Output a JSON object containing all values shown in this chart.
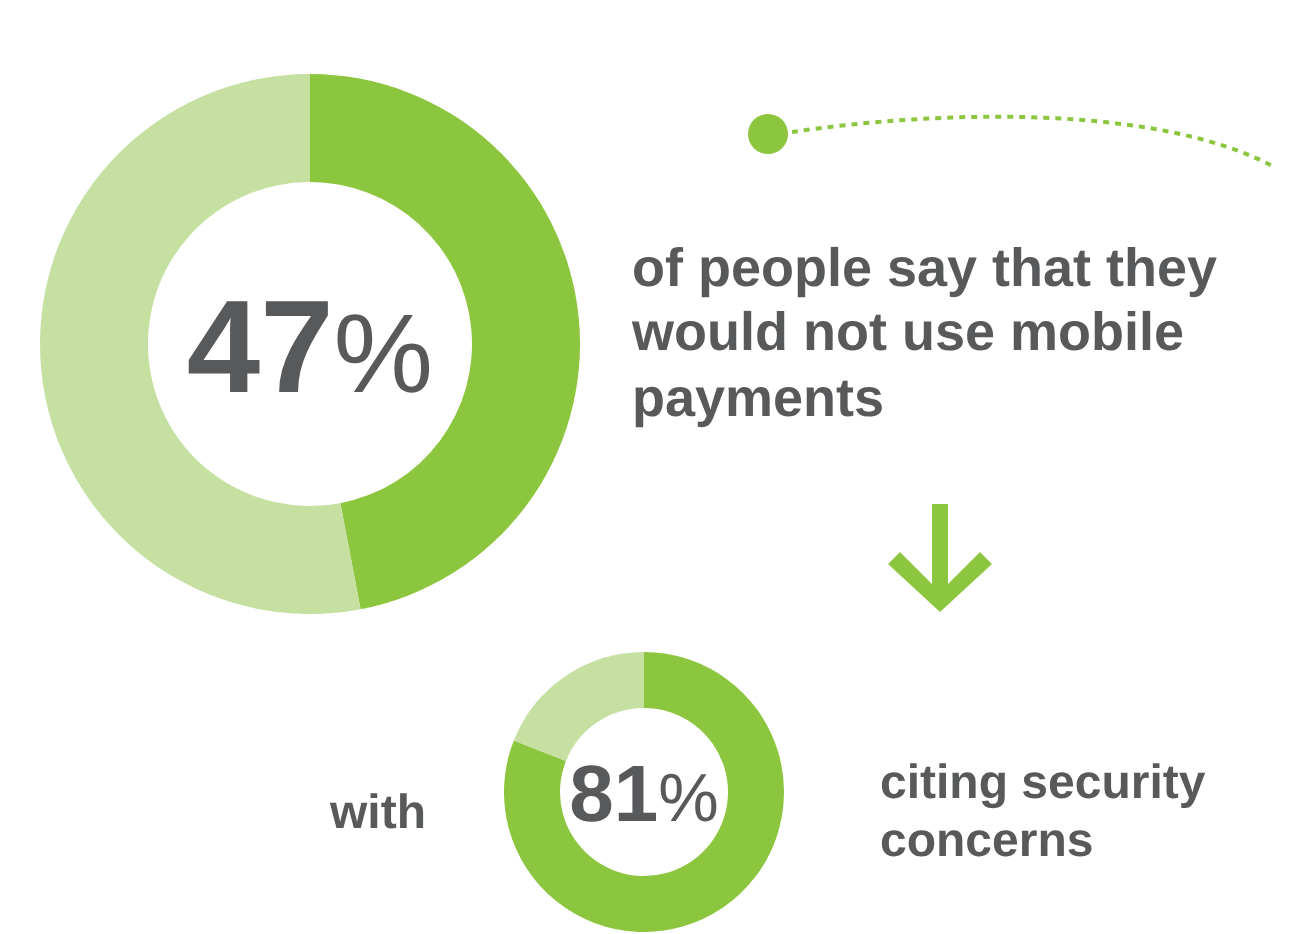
{
  "chart_data": [
    {
      "type": "donut",
      "categories": [
        null,
        null
      ],
      "values": [
        47,
        53
      ],
      "colors": [
        "#8cc63f",
        "#c6e0a2"
      ],
      "value_labels": [
        "47%",
        null
      ],
      "annotations": [
        "of people say that they would not use mobile payments"
      ]
    },
    {
      "type": "donut",
      "categories": [
        null,
        null
      ],
      "values": [
        81,
        19
      ],
      "colors": [
        "#8cc63f",
        "#c6e0a2"
      ],
      "value_labels": [
        "81%",
        null
      ],
      "annotations": [
        "with",
        "citing security concerns"
      ]
    }
  ]
}
